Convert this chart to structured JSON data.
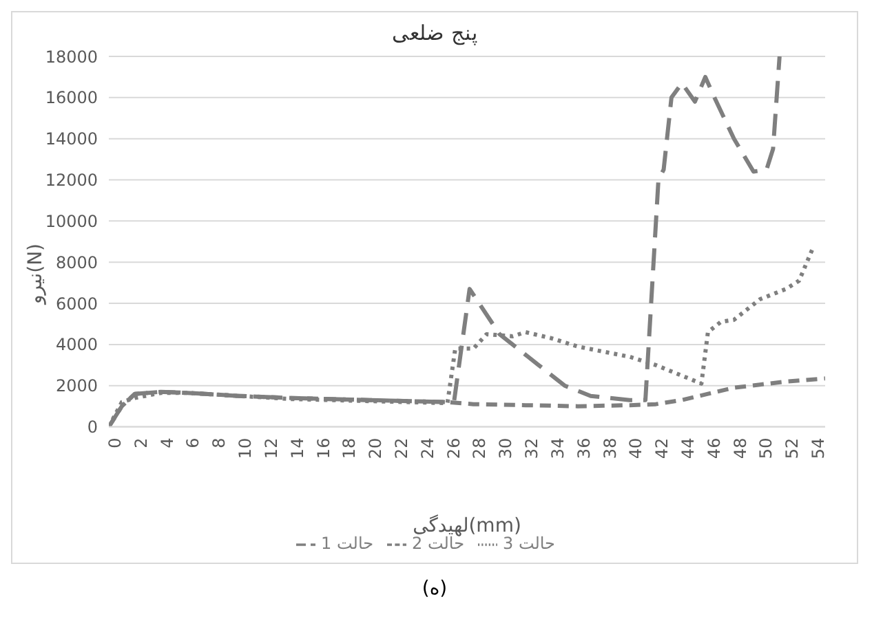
{
  "chart_data": {
    "type": "line",
    "title": "پنج ضلعی",
    "xlabel": "لهیدگی(mm)",
    "ylabel": "نیرو(N)",
    "annotations": [
      "(ه)"
    ],
    "xlim": [
      0,
      55
    ],
    "xticks": [
      0,
      2,
      4,
      6,
      8,
      10,
      12,
      14,
      16,
      18,
      20,
      22,
      24,
      26,
      28,
      30,
      32,
      34,
      36,
      38,
      40,
      42,
      44,
      46,
      48,
      50,
      52,
      54
    ],
    "ylim": [
      0,
      18000
    ],
    "yticks": [
      0,
      2000,
      4000,
      6000,
      8000,
      10000,
      12000,
      14000,
      16000,
      18000
    ],
    "grid": "y",
    "legend": "bottom",
    "marker": "none",
    "series": [
      {
        "name": "حالت 1",
        "color": "#7f7f7f",
        "line_style": "dashed",
        "x": [
          0,
          1,
          2,
          4,
          6,
          10,
          14,
          20,
          26,
          26.5,
          27.7,
          30,
          33,
          35,
          37,
          40,
          41.2,
          42.2,
          42.6,
          43.2,
          44,
          45,
          45.8,
          46.5,
          48,
          49.5,
          50.5,
          51,
          51.5
        ],
        "values": [
          0,
          1000,
          1600,
          1700,
          1650,
          1500,
          1400,
          1300,
          1200,
          1200,
          6700,
          4500,
          3000,
          2000,
          1500,
          1300,
          1300,
          12000,
          12500,
          16000,
          16700,
          15800,
          17000,
          16000,
          14000,
          12400,
          12500,
          13500,
          18000
        ]
      },
      {
        "name": "حالت 2",
        "color": "#7f7f7f",
        "line_style": "dashed",
        "x": [
          0,
          1,
          2,
          4,
          6,
          10,
          14,
          20,
          26,
          28,
          32,
          36,
          40,
          42,
          44,
          46,
          48,
          50,
          52,
          55
        ],
        "values": [
          0,
          1000,
          1600,
          1700,
          1650,
          1500,
          1400,
          1300,
          1200,
          1100,
          1050,
          1000,
          1050,
          1100,
          1300,
          1600,
          1900,
          2050,
          2200,
          2350
        ]
      },
      {
        "name": "حالت 3",
        "color": "#7f7f7f",
        "line_style": "dotted",
        "x": [
          0,
          1,
          2,
          4,
          6,
          10,
          14,
          20,
          26,
          26.6,
          28,
          29,
          31,
          32,
          34,
          36,
          40,
          42,
          45.5,
          46,
          47,
          48,
          50,
          52,
          53,
          54
        ],
        "values": [
          0,
          1200,
          1400,
          1650,
          1650,
          1500,
          1350,
          1250,
          1150,
          3800,
          3800,
          4500,
          4400,
          4600,
          4300,
          3900,
          3400,
          3000,
          2100,
          4600,
          5100,
          5200,
          6200,
          6700,
          7100,
          8600
        ]
      }
    ]
  }
}
